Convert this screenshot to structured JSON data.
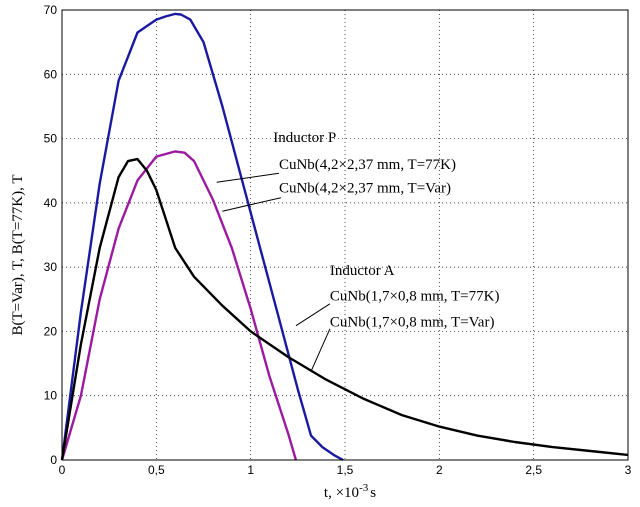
{
  "chart_data": {
    "type": "line",
    "title": "",
    "xlabel": "t, ×10",
    "xlabel_exp": "-3",
    "xlabel_unit": "s",
    "ylabel": "B(T=Var), T, B(T=77K), T",
    "xlim": [
      0,
      3
    ],
    "ylim": [
      0,
      70
    ],
    "grid": true,
    "x_ticks": [
      {
        "value": 0,
        "label": "0"
      },
      {
        "value": 0.5,
        "label": "0,5"
      },
      {
        "value": 1,
        "label": "1"
      },
      {
        "value": 1.5,
        "label": "1,5"
      },
      {
        "value": 2,
        "label": "2"
      },
      {
        "value": 2.5,
        "label": "2,5"
      },
      {
        "value": 3,
        "label": "3"
      }
    ],
    "y_ticks": [
      {
        "value": 0,
        "label": "0"
      },
      {
        "value": 10,
        "label": "10"
      },
      {
        "value": 20,
        "label": "20"
      },
      {
        "value": 30,
        "label": "30"
      },
      {
        "value": 40,
        "label": "40"
      },
      {
        "value": 50,
        "label": "50"
      },
      {
        "value": 60,
        "label": "60"
      },
      {
        "value": 70,
        "label": "70"
      }
    ],
    "series": [
      {
        "name": "CuNb(4,2×2,37 mm, T=77K)",
        "color": "#1a1aa0",
        "x": [
          0,
          0.1,
          0.2,
          0.3,
          0.4,
          0.5,
          0.55,
          0.6,
          0.63,
          0.68,
          0.75,
          0.85,
          0.95,
          1.05,
          1.15,
          1.25,
          1.32,
          1.38,
          1.44,
          1.49
        ],
        "y": [
          0,
          23,
          43,
          59,
          66.5,
          68.5,
          69,
          69.4,
          69.3,
          68.5,
          65,
          55,
          44,
          33,
          22,
          11,
          3.8,
          2,
          0.8,
          0
        ]
      },
      {
        "name": "CuNb(4,2×2,37 mm, T=Var)",
        "color": "#9a1aa0",
        "x": [
          0,
          0.1,
          0.2,
          0.3,
          0.4,
          0.5,
          0.6,
          0.65,
          0.7,
          0.8,
          0.9,
          1.0,
          1.1,
          1.2,
          1.24
        ],
        "y": [
          0,
          10,
          25,
          36,
          43.5,
          47.2,
          48,
          47.8,
          46.5,
          40.5,
          33,
          23.5,
          13,
          4,
          0
        ]
      },
      {
        "name": "CuNb(1,7×0,8 mm, T=77K)",
        "color": "#000000",
        "x": [
          0,
          0.1,
          0.2,
          0.3,
          0.35,
          0.4,
          0.45,
          0.5,
          0.6,
          0.7,
          0.85,
          1.0,
          1.2,
          1.4,
          1.6,
          1.8,
          2.0,
          2.2,
          2.4,
          2.6,
          2.8,
          3.0
        ],
        "y": [
          0,
          18,
          33,
          44,
          46.5,
          46.8,
          45,
          42,
          33,
          28.5,
          24,
          20,
          16,
          12.5,
          9.5,
          7,
          5.2,
          3.8,
          2.8,
          2,
          1.4,
          0.8
        ]
      }
    ],
    "annotations": [
      {
        "text": "Inductor P",
        "x": 1.12,
        "y": 49.5
      },
      {
        "text": "CuNb(4,2×2,37 mm, T=77K)",
        "x": 1.15,
        "y": 45.3
      },
      {
        "text": "CuNb(4,2×2,37 mm, T=Var)",
        "x": 1.15,
        "y": 41.6
      },
      {
        "text": "Inductor A",
        "x": 1.42,
        "y": 28.8
      },
      {
        "text": "CuNb(1,7×0,8 mm, T=77K)",
        "x": 1.42,
        "y": 24.8
      },
      {
        "text": "CuNb(1,7×0,8 mm, T=Var)",
        "x": 1.42,
        "y": 20.8
      }
    ],
    "leaders": [
      {
        "from": [
          1.15,
          44.6
        ],
        "to": [
          0.82,
          43.2
        ]
      },
      {
        "from": [
          1.16,
          40.8
        ],
        "to": [
          0.85,
          38.7
        ]
      },
      {
        "from": [
          1.42,
          24.3
        ],
        "to": [
          1.24,
          20.9
        ]
      },
      {
        "from": [
          1.42,
          20.4
        ],
        "to": [
          1.32,
          13.8
        ]
      }
    ]
  }
}
